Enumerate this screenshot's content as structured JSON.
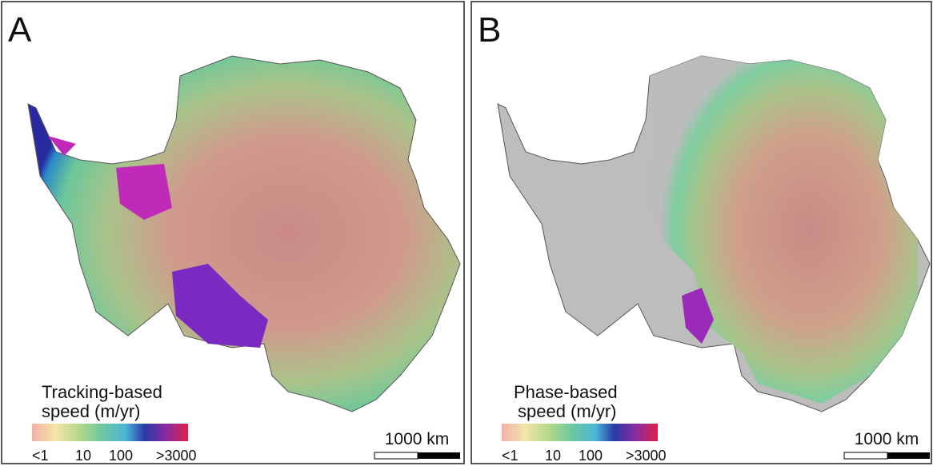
{
  "panels": [
    {
      "label": "A",
      "legend_title": [
        "Tracking-based",
        "speed (m/yr)"
      ],
      "legend_ticks": [
        "<1",
        "10",
        "100",
        ">3000"
      ],
      "scale_bar": "1000 km"
    },
    {
      "label": "B",
      "legend_title": [
        "Phase-based",
        "speed (m/yr)"
      ],
      "legend_ticks": [
        "<1",
        "10",
        "100",
        ">3000"
      ],
      "scale_bar": "1000 km"
    }
  ]
}
